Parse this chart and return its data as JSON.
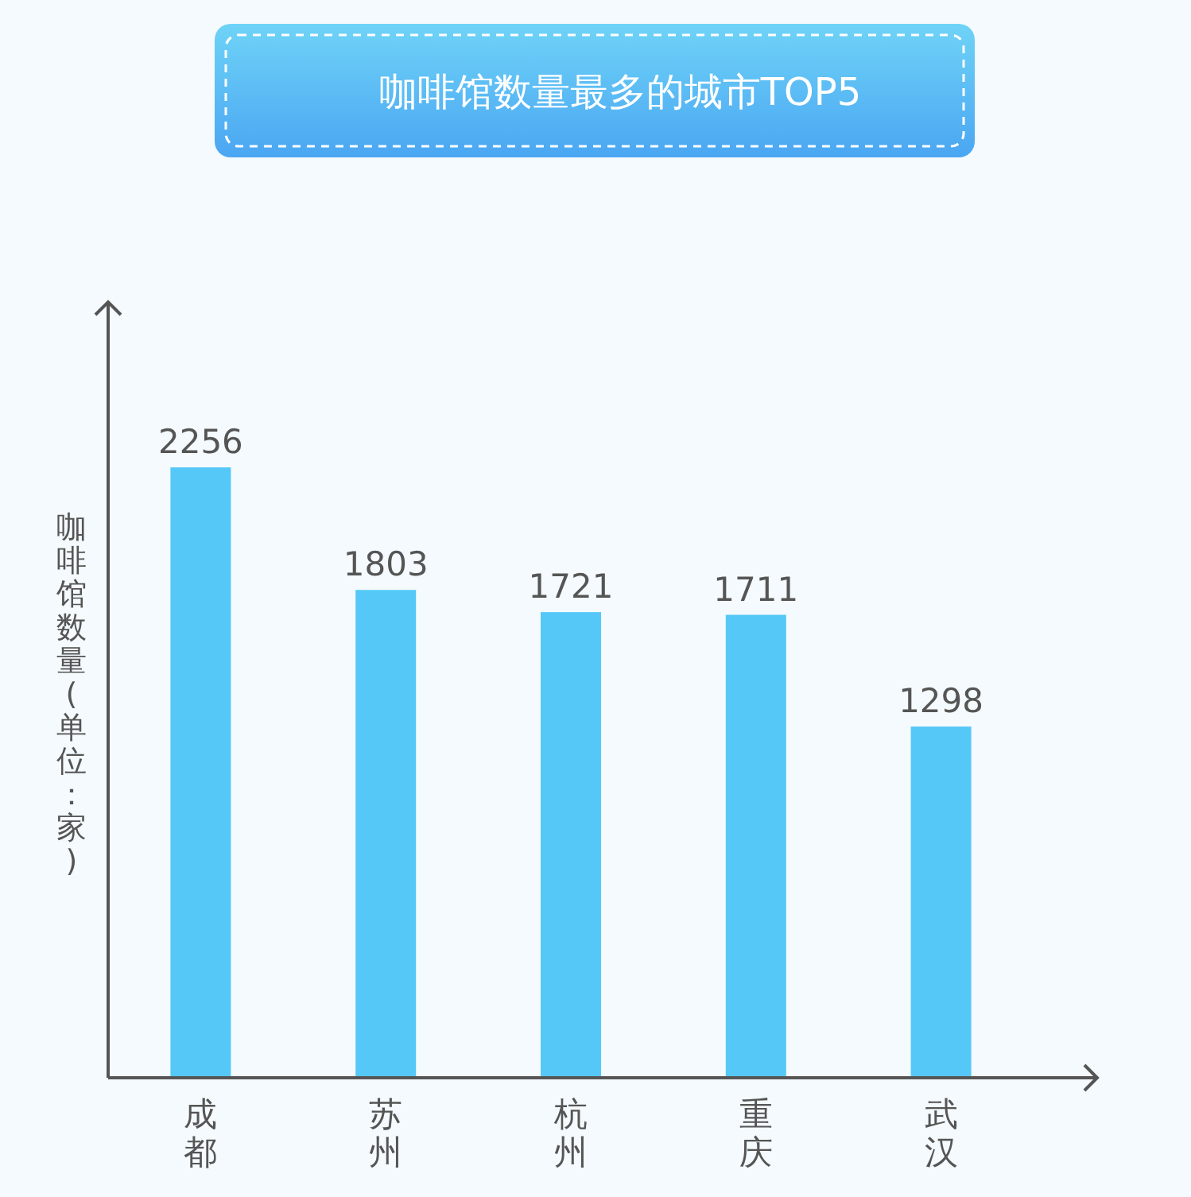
{
  "chart_data": {
    "type": "bar",
    "title": "咖啡馆数量最多的城市TOP5",
    "ylabel": "咖啡馆数量(单位：家)",
    "categories": [
      "成都",
      "苏州",
      "杭州",
      "重庆",
      "武汉"
    ],
    "values": [
      2256,
      1803,
      1721,
      1711,
      1298
    ],
    "color": "#55c8f7",
    "data_labels": true
  }
}
